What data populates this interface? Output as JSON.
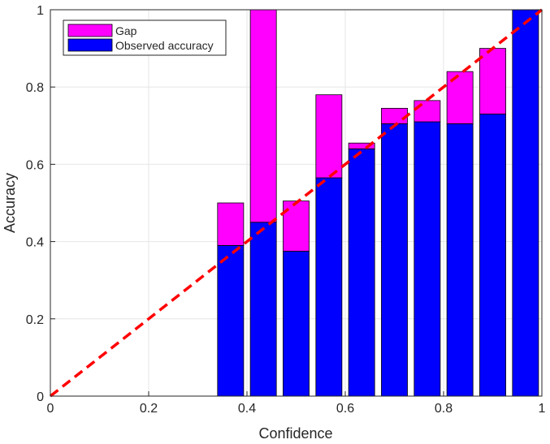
{
  "chart_data": {
    "type": "bar",
    "stacked": true,
    "x": [
      0.3667,
      0.4333,
      0.5,
      0.5667,
      0.6333,
      0.7,
      0.7667,
      0.8333,
      0.9,
      0.9667
    ],
    "series": [
      {
        "name": "Observed accuracy",
        "color": "#0000ff",
        "values": [
          0.39,
          0.45,
          0.375,
          0.565,
          0.64,
          0.705,
          0.71,
          0.705,
          0.73,
          1.0
        ]
      },
      {
        "name": "Gap",
        "color": "#ff00ff",
        "values": [
          0.11,
          0.55,
          0.13,
          0.215,
          0.015,
          0.04,
          0.055,
          0.135,
          0.17,
          0.0
        ]
      }
    ],
    "reference_line": {
      "x": [
        0,
        1
      ],
      "y": [
        0,
        1
      ],
      "color": "#ff0000"
    },
    "x_label": "Confidence",
    "y_label": "Accuracy",
    "xlim": [
      0,
      1
    ],
    "ylim": [
      0,
      1
    ],
    "xticks": [
      0,
      0.2,
      0.4,
      0.6,
      0.8,
      1
    ],
    "yticks": [
      0,
      0.2,
      0.4,
      0.6,
      0.8,
      1
    ],
    "grid": true,
    "legend_position": "upper-left"
  }
}
